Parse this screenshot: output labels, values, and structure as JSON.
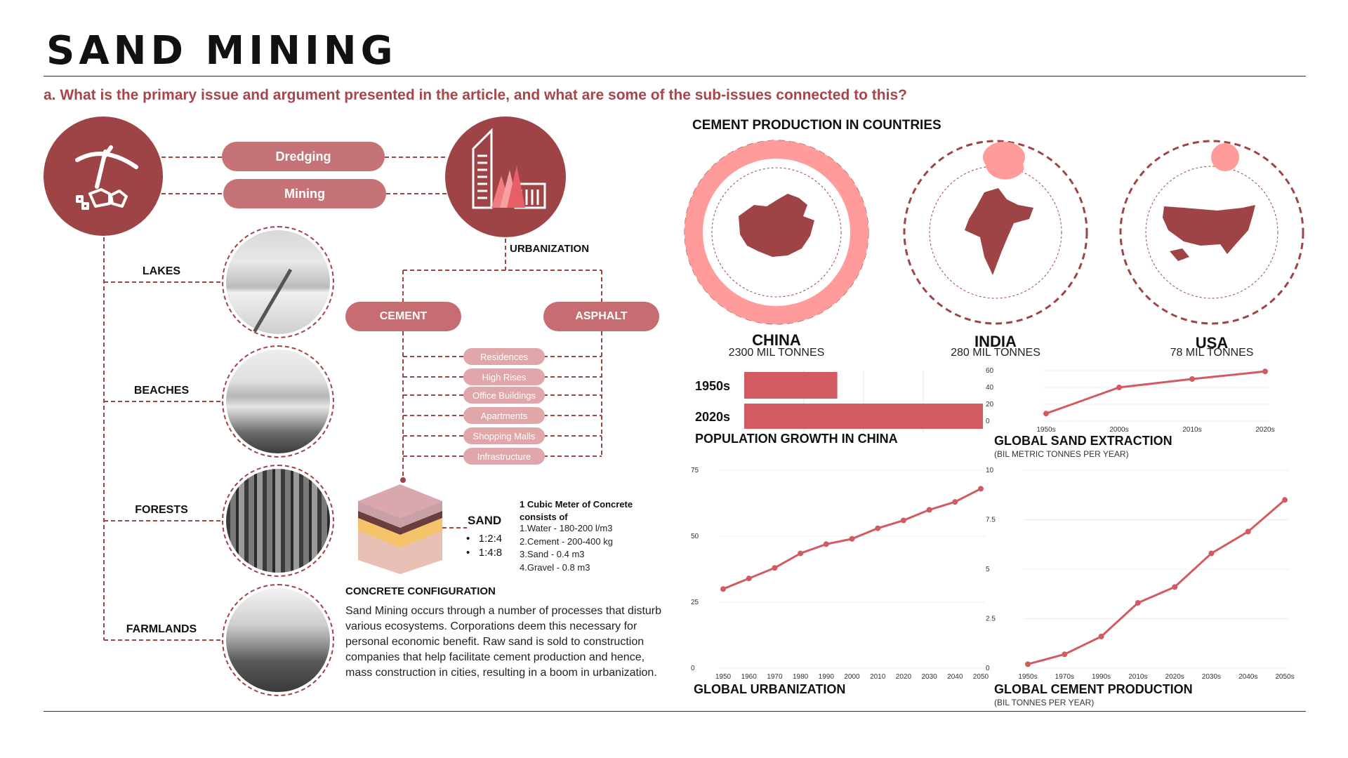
{
  "header": {
    "title": "SAND MINING",
    "question": "a. What is the primary issue and argument presented in the article, and what are some of the sub-issues connected to this?"
  },
  "icons": {
    "mining": "pickaxe-rocks-icon",
    "urbanization": "skyscrapers-icon",
    "concrete": "concrete-cube-icon"
  },
  "processes": [
    "Dredging",
    "Mining"
  ],
  "urbanization_label": "URBANIZATION",
  "habitats": [
    "LAKES",
    "BEACHES",
    "FORESTS",
    "FARMLANDS"
  ],
  "materials": [
    "CEMENT",
    "ASPHALT"
  ],
  "uses": [
    "Residences",
    "High Rises",
    "Office Buildings",
    "Apartments",
    "Shopping Malls",
    "Infrastructure"
  ],
  "concrete": {
    "sand_label": "SAND",
    "ratios": [
      "1:2:4",
      "1:4:8"
    ],
    "heading_line1": "1 Cubic Meter of Concrete",
    "heading_line2": "consists of",
    "items": [
      "Water - 180-200 l/m3",
      "Cement - 200-400 kg",
      "Sand - 0.4 m3",
      "Gravel - 0.8 m3"
    ],
    "config_title": "CONCRETE CONFIGURATION",
    "paragraph": "Sand Mining occurs through a number of processes that disturb various ecosystems. Corporations deem this necessary for personal economic benefit. Raw sand is sold to construction companies that help facilitate cement production and hence, mass construction in cities, resulting in a boom in urbanization."
  },
  "cement_countries": {
    "title": "CEMENT PRODUCTION IN COUNTRIES",
    "countries": [
      {
        "name": "CHINA",
        "value_label": "2300 MIL TONNES",
        "value": 2300
      },
      {
        "name": "INDIA",
        "value_label": "280 MIL TONNES",
        "value": 280
      },
      {
        "name": "USA",
        "value_label": "78 MIL TONNES",
        "value": 78
      }
    ]
  },
  "colors": {
    "dark_red": "#9e4447",
    "line_red": "#d15b61",
    "ring_pink": "#ff9b9b",
    "pill": "#c57377",
    "sub_pill": "#e0a6a9"
  },
  "chart_data": [
    {
      "type": "bar",
      "orientation": "horizontal",
      "title": "POPULATION GROWTH IN CHINA",
      "categories": [
        "1950s",
        "2020s"
      ],
      "values": [
        0.55,
        1.41
      ],
      "xlim": [
        0,
        1.41
      ],
      "grid": true
    },
    {
      "type": "line",
      "title": "GLOBAL SAND EXTRACTION",
      "subtitle": "(BIL METRIC TONNES PER YEAR)",
      "x": [
        "1950s",
        "2000s",
        "2010s",
        "2020s"
      ],
      "y": [
        9,
        40,
        50,
        59
      ],
      "yticks": [
        0,
        20,
        40,
        60
      ],
      "ylim": [
        0,
        60
      ],
      "grid": true
    },
    {
      "type": "line",
      "title": "GLOBAL URBANIZATION",
      "x": [
        "1950",
        "1960",
        "1970",
        "1980",
        "1990",
        "2000",
        "2010",
        "2020",
        "2030",
        "2040",
        "2050"
      ],
      "y": [
        30,
        34,
        38,
        43.5,
        47,
        49,
        53,
        56,
        60,
        63,
        68
      ],
      "yticks": [
        0,
        25,
        50,
        75
      ],
      "ylim": [
        0,
        75
      ],
      "grid": true
    },
    {
      "type": "line",
      "title": "GLOBAL CEMENT PRODUCTION",
      "subtitle": "(BIL TONNES PER YEAR)",
      "x": [
        "1950s",
        "1970s",
        "1990s",
        "2010s",
        "2020s",
        "2030s",
        "2040s",
        "2050s"
      ],
      "y": [
        0.2,
        0.7,
        1.6,
        3.3,
        4.1,
        5.8,
        6.9,
        8.5
      ],
      "yticks": [
        0,
        2.5,
        5,
        7.5,
        10
      ],
      "ylim": [
        0,
        10
      ],
      "grid": true
    }
  ]
}
